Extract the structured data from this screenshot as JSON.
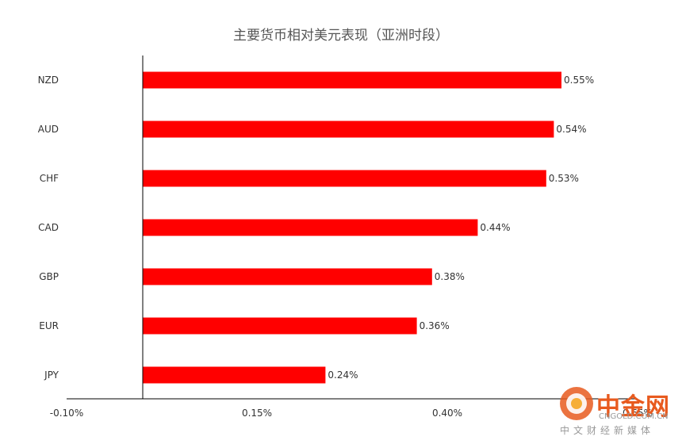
{
  "chart_data": {
    "type": "bar",
    "orientation": "horizontal",
    "title": "主要货币相对美元表现（亚洲时段）",
    "categories": [
      "NZD",
      "AUD",
      "CHF",
      "CAD",
      "GBP",
      "EUR",
      "JPY"
    ],
    "values": [
      0.55,
      0.54,
      0.53,
      0.44,
      0.38,
      0.36,
      0.24
    ],
    "value_labels": [
      "0.55%",
      "0.54%",
      "0.53%",
      "0.44%",
      "0.38%",
      "0.36%",
      "0.24%"
    ],
    "xlim": [
      -0.1,
      0.65
    ],
    "xticks": [
      -0.1,
      0.15,
      0.4,
      0.65
    ],
    "xtick_labels": [
      "-0.10%",
      "0.15%",
      "0.40%",
      "0.65%"
    ],
    "bar_color": "#ff0000",
    "grid": false
  },
  "watermark": {
    "brand_cn": "中金网",
    "brand_en": "CNGOLD.COM.CN",
    "tagline": "中文财经新媒体",
    "logo_color": "#e85a1e"
  }
}
